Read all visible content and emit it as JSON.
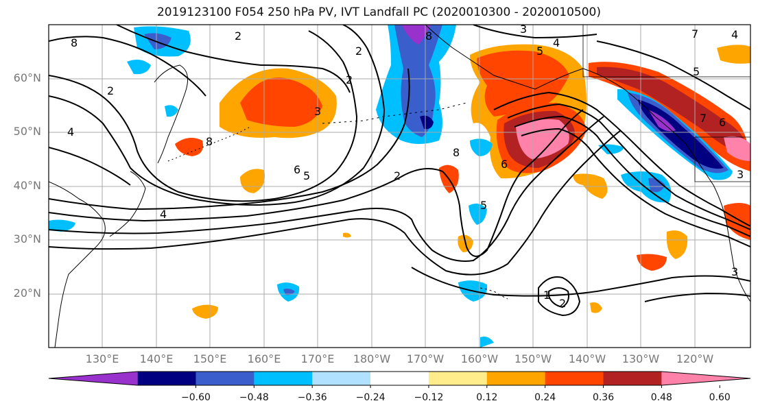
{
  "title": "2019123100 F054 250 hPa PV, IVT Landfall PC (2020010300 - 2020010500)",
  "lat_labels": [
    "60°N",
    "50°N",
    "40°N",
    "30°N",
    "20°N"
  ],
  "lon_labels": [
    "130°E",
    "140°E",
    "150°E",
    "160°E",
    "170°E",
    "180°W",
    "170°W",
    "160°W",
    "150°W",
    "140°W",
    "130°W",
    "120°W"
  ],
  "colorbar": {
    "ticks": [
      "−0.60",
      "−0.48",
      "−0.36",
      "−0.24",
      "−0.12",
      "0.12",
      "0.24",
      "0.36",
      "0.48",
      "0.60"
    ],
    "colors": [
      "#9932CC",
      "#000080",
      "#3A5FCD",
      "#00BFFF",
      "#B0E2FF",
      "#FFFFFF",
      "#FFEC8B",
      "#FFA500",
      "#FF4500",
      "#B22222",
      "#FF82AB"
    ]
  },
  "contour_labels": [
    "8",
    "2",
    "8",
    "3",
    "4",
    "5",
    "7",
    "4",
    "8",
    "3",
    "2",
    "6",
    "5",
    "2",
    "8",
    "5",
    "4",
    "6",
    "5",
    "2",
    "2",
    "7",
    "6",
    "3",
    "4",
    "3",
    "1",
    "2"
  ]
}
